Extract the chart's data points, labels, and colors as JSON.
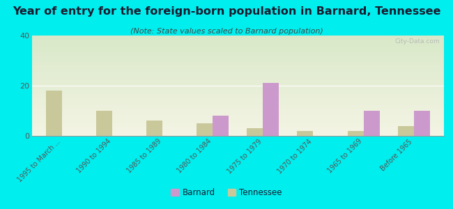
{
  "title": "Year of entry for the foreign-born population in Barnard, Tennessee",
  "subtitle": "(Note: State values scaled to Barnard population)",
  "categories": [
    "1995 to March ...",
    "1990 to 1994",
    "1985 to 1989",
    "1980 to 1984",
    "1975 to 1979",
    "1970 to 1974",
    "1965 to 1969",
    "Before 1965"
  ],
  "barnard_values": [
    0,
    0,
    0,
    8,
    21,
    0,
    10,
    10
  ],
  "tennessee_values": [
    18,
    10,
    6,
    5,
    3,
    2,
    2,
    4
  ],
  "barnard_color": "#cc99cc",
  "tennessee_color": "#c8c89a",
  "bg_color": "#00eeee",
  "chart_bg_top": "#d8e8c8",
  "chart_bg_bottom": "#f4f4e4",
  "ylim": [
    0,
    40
  ],
  "yticks": [
    0,
    20,
    40
  ],
  "bar_width": 0.32,
  "title_fontsize": 11.5,
  "subtitle_fontsize": 8,
  "tick_fontsize": 7,
  "ytick_fontsize": 8,
  "watermark": "City-Data.com",
  "title_color": "#1a1a2e",
  "subtitle_color": "#444444",
  "tick_color": "#555555"
}
